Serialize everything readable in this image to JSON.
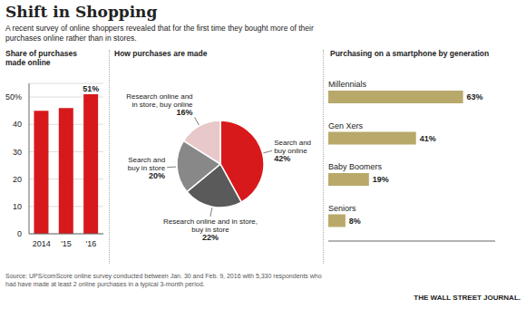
{
  "title": "Shift in Shopping",
  "subtitle": "A recent survey of online shoppers revealed that for the first time they bought more of their\npurchases online rather than in stores.",
  "annotations": [
    "Source: UPS/comScore online survey conducted between Jan. 30 and Feb. 9, 2016 with 5,330 respondents who\nhad have made at least 2 online purchases in a typical 3-month period.",
    "THE WALL STREET JOURNAL."
  ],
  "chart_data": [
    {
      "type": "bar",
      "title": "Share of purchases\nmade online",
      "categories": [
        "2014",
        "'15",
        "'16"
      ],
      "values": [
        45,
        46,
        51
      ],
      "value_labels": [
        null,
        null,
        "51%"
      ],
      "color": "#d7191c",
      "ylim": [
        0,
        55
      ],
      "yticks": [
        0,
        10,
        20,
        30,
        40,
        {
          "value": 50,
          "label": "50%"
        }
      ],
      "grid": true
    },
    {
      "type": "pie",
      "title": "How purchases are made",
      "categories": [
        "Search and\nbuy online",
        "Research online and in store,\nbuy in store",
        "Search and\nbuy in store",
        "Research online and\nin store, buy online"
      ],
      "values": [
        42,
        22,
        20,
        16
      ],
      "value_labels": [
        "42%",
        "22%",
        "20%",
        "16%"
      ],
      "colors": [
        "#d7191c",
        "#5a5a5a",
        "#888888",
        "#e8c8c8"
      ],
      "data_labels": true
    },
    {
      "type": "bar",
      "orientation": "horizontal",
      "title": "Purchasing on a smartphone by generation",
      "categories": [
        "Millennials",
        "Gen Xers",
        "Baby Boomers",
        "Seniors"
      ],
      "values": [
        63,
        41,
        19,
        8
      ],
      "value_labels": [
        "63%",
        "41%",
        "19%",
        "8%"
      ],
      "color": "#b8a96a",
      "xlim": [
        0,
        78
      ],
      "tick_labels": false,
      "data_labels": true
    }
  ]
}
